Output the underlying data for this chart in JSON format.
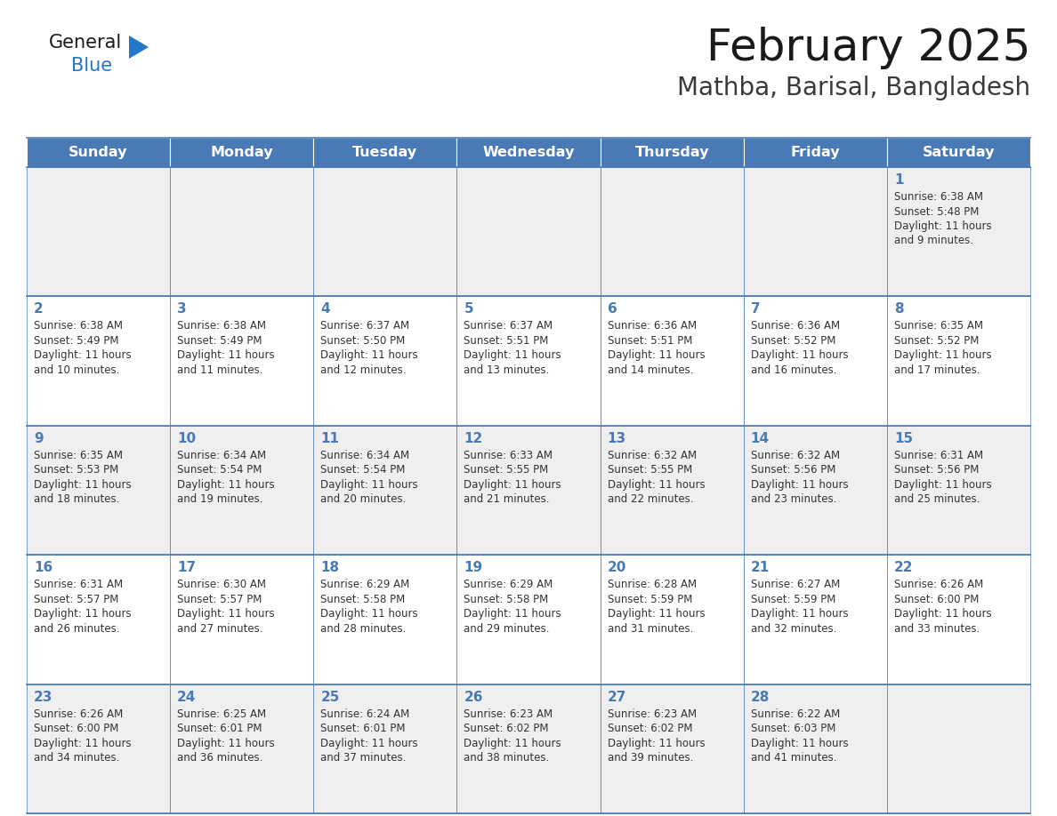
{
  "title": "February 2025",
  "subtitle": "Mathba, Barisal, Bangladesh",
  "header_bg": "#4a7ab5",
  "header_text_color": "#FFFFFF",
  "day_names": [
    "Sunday",
    "Monday",
    "Tuesday",
    "Wednesday",
    "Thursday",
    "Friday",
    "Saturday"
  ],
  "row_bg_light": "#EFEFEF",
  "row_bg_white": "#FFFFFF",
  "cell_border_color": "#4a7ab5",
  "title_color": "#1a1a1a",
  "subtitle_color": "#3a3a3a",
  "general_text": "#333333",
  "day_num_color": "#4a7ab5",
  "logo_general_color": "#1a1a1a",
  "logo_blue_color": "#2277CC",
  "logo_triangle_color": "#2277CC",
  "days_data": [
    {
      "day": 1,
      "col": 6,
      "row": 0,
      "sunrise": "6:38 AM",
      "sunset": "5:48 PM",
      "daylight": "11 hours and 9 minutes"
    },
    {
      "day": 2,
      "col": 0,
      "row": 1,
      "sunrise": "6:38 AM",
      "sunset": "5:49 PM",
      "daylight": "11 hours and 10 minutes"
    },
    {
      "day": 3,
      "col": 1,
      "row": 1,
      "sunrise": "6:38 AM",
      "sunset": "5:49 PM",
      "daylight": "11 hours and 11 minutes"
    },
    {
      "day": 4,
      "col": 2,
      "row": 1,
      "sunrise": "6:37 AM",
      "sunset": "5:50 PM",
      "daylight": "11 hours and 12 minutes"
    },
    {
      "day": 5,
      "col": 3,
      "row": 1,
      "sunrise": "6:37 AM",
      "sunset": "5:51 PM",
      "daylight": "11 hours and 13 minutes"
    },
    {
      "day": 6,
      "col": 4,
      "row": 1,
      "sunrise": "6:36 AM",
      "sunset": "5:51 PM",
      "daylight": "11 hours and 14 minutes"
    },
    {
      "day": 7,
      "col": 5,
      "row": 1,
      "sunrise": "6:36 AM",
      "sunset": "5:52 PM",
      "daylight": "11 hours and 16 minutes"
    },
    {
      "day": 8,
      "col": 6,
      "row": 1,
      "sunrise": "6:35 AM",
      "sunset": "5:52 PM",
      "daylight": "11 hours and 17 minutes"
    },
    {
      "day": 9,
      "col": 0,
      "row": 2,
      "sunrise": "6:35 AM",
      "sunset": "5:53 PM",
      "daylight": "11 hours and 18 minutes"
    },
    {
      "day": 10,
      "col": 1,
      "row": 2,
      "sunrise": "6:34 AM",
      "sunset": "5:54 PM",
      "daylight": "11 hours and 19 minutes"
    },
    {
      "day": 11,
      "col": 2,
      "row": 2,
      "sunrise": "6:34 AM",
      "sunset": "5:54 PM",
      "daylight": "11 hours and 20 minutes"
    },
    {
      "day": 12,
      "col": 3,
      "row": 2,
      "sunrise": "6:33 AM",
      "sunset": "5:55 PM",
      "daylight": "11 hours and 21 minutes"
    },
    {
      "day": 13,
      "col": 4,
      "row": 2,
      "sunrise": "6:32 AM",
      "sunset": "5:55 PM",
      "daylight": "11 hours and 22 minutes"
    },
    {
      "day": 14,
      "col": 5,
      "row": 2,
      "sunrise": "6:32 AM",
      "sunset": "5:56 PM",
      "daylight": "11 hours and 23 minutes"
    },
    {
      "day": 15,
      "col": 6,
      "row": 2,
      "sunrise": "6:31 AM",
      "sunset": "5:56 PM",
      "daylight": "11 hours and 25 minutes"
    },
    {
      "day": 16,
      "col": 0,
      "row": 3,
      "sunrise": "6:31 AM",
      "sunset": "5:57 PM",
      "daylight": "11 hours and 26 minutes"
    },
    {
      "day": 17,
      "col": 1,
      "row": 3,
      "sunrise": "6:30 AM",
      "sunset": "5:57 PM",
      "daylight": "11 hours and 27 minutes"
    },
    {
      "day": 18,
      "col": 2,
      "row": 3,
      "sunrise": "6:29 AM",
      "sunset": "5:58 PM",
      "daylight": "11 hours and 28 minutes"
    },
    {
      "day": 19,
      "col": 3,
      "row": 3,
      "sunrise": "6:29 AM",
      "sunset": "5:58 PM",
      "daylight": "11 hours and 29 minutes"
    },
    {
      "day": 20,
      "col": 4,
      "row": 3,
      "sunrise": "6:28 AM",
      "sunset": "5:59 PM",
      "daylight": "11 hours and 31 minutes"
    },
    {
      "day": 21,
      "col": 5,
      "row": 3,
      "sunrise": "6:27 AM",
      "sunset": "5:59 PM",
      "daylight": "11 hours and 32 minutes"
    },
    {
      "day": 22,
      "col": 6,
      "row": 3,
      "sunrise": "6:26 AM",
      "sunset": "6:00 PM",
      "daylight": "11 hours and 33 minutes"
    },
    {
      "day": 23,
      "col": 0,
      "row": 4,
      "sunrise": "6:26 AM",
      "sunset": "6:00 PM",
      "daylight": "11 hours and 34 minutes"
    },
    {
      "day": 24,
      "col": 1,
      "row": 4,
      "sunrise": "6:25 AM",
      "sunset": "6:01 PM",
      "daylight": "11 hours and 36 minutes"
    },
    {
      "day": 25,
      "col": 2,
      "row": 4,
      "sunrise": "6:24 AM",
      "sunset": "6:01 PM",
      "daylight": "11 hours and 37 minutes"
    },
    {
      "day": 26,
      "col": 3,
      "row": 4,
      "sunrise": "6:23 AM",
      "sunset": "6:02 PM",
      "daylight": "11 hours and 38 minutes"
    },
    {
      "day": 27,
      "col": 4,
      "row": 4,
      "sunrise": "6:23 AM",
      "sunset": "6:02 PM",
      "daylight": "11 hours and 39 minutes"
    },
    {
      "day": 28,
      "col": 5,
      "row": 4,
      "sunrise": "6:22 AM",
      "sunset": "6:03 PM",
      "daylight": "11 hours and 41 minutes"
    }
  ]
}
